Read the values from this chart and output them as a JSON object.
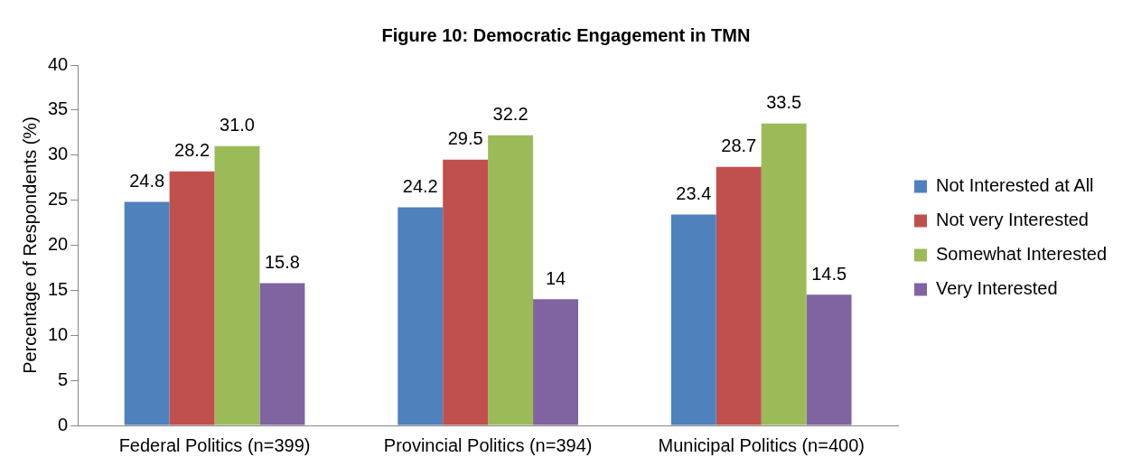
{
  "chart_data": {
    "type": "bar",
    "title": "Figure 10: Democratic Engagement in TMN",
    "ylabel": "Percentage of Respondents (%)",
    "categories": [
      "Federal Politics (n=399)",
      "Provincial Politics (n=394)",
      "Municipal Politics (n=400)"
    ],
    "series": [
      {
        "name": "Not Interested at All",
        "color": "#4f81bd",
        "values": [
          24.8,
          24.2,
          23.4
        ],
        "value_labels": [
          "24.8",
          "24.2",
          "23.4"
        ]
      },
      {
        "name": "Not very Interested",
        "color": "#c0504d",
        "values": [
          28.2,
          29.5,
          28.7
        ],
        "value_labels": [
          "28.2",
          "29.5",
          "28.7"
        ]
      },
      {
        "name": "Somewhat Interested",
        "color": "#9bbb59",
        "values": [
          31.0,
          32.2,
          33.5
        ],
        "value_labels": [
          "31.0",
          "32.2",
          "33.5"
        ]
      },
      {
        "name": "Very Interested",
        "color": "#8064a2",
        "values": [
          15.8,
          14,
          14.5
        ],
        "value_labels": [
          "15.8",
          "14",
          "14.5"
        ]
      }
    ],
    "ylim": [
      0,
      40
    ],
    "yticks": [
      0,
      5,
      10,
      15,
      20,
      25,
      30,
      35,
      40
    ],
    "grid": false,
    "legend": "right"
  }
}
